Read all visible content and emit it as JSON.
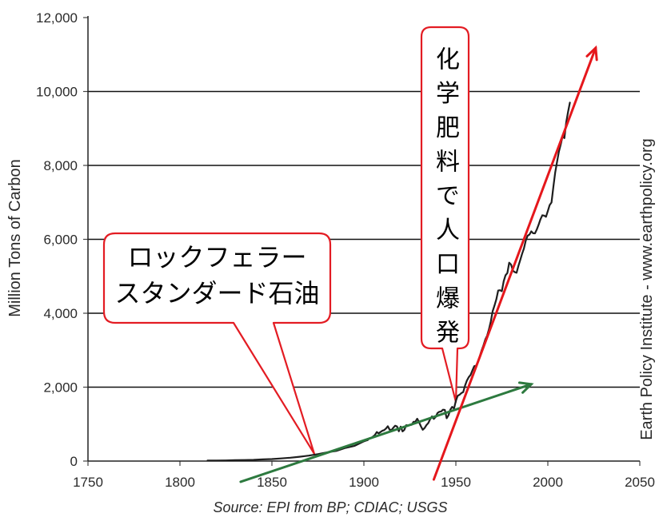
{
  "chart_data": {
    "type": "line",
    "xlabel": "",
    "ylabel": "Million Tons of Carbon",
    "xlim": [
      1750,
      2050
    ],
    "ylim": [
      0,
      12000
    ],
    "x_ticks": [
      1750,
      1800,
      1850,
      1900,
      1950,
      2000,
      2050
    ],
    "x_tick_labels": [
      "1750",
      "1800",
      "1850",
      "1900",
      "1950",
      "2000",
      "2050"
    ],
    "y_ticks": [
      0,
      2000,
      4000,
      6000,
      8000,
      10000,
      12000
    ],
    "y_tick_labels": [
      "0",
      "2,000",
      "4,000",
      "6,000",
      "8,000",
      "10,000",
      "12,000"
    ],
    "grid": "horizontal",
    "legend": "none",
    "series": [
      {
        "color": "#1e1e1e",
        "x": [
          1815,
          1820,
          1825,
          1830,
          1835,
          1840,
          1845,
          1850,
          1855,
          1860,
          1865,
          1870,
          1875,
          1880,
          1885,
          1890,
          1895,
          1900,
          1901,
          1902,
          1903,
          1904,
          1905,
          1906,
          1907,
          1908,
          1909,
          1910,
          1911,
          1912,
          1913,
          1914,
          1915,
          1916,
          1917,
          1918,
          1919,
          1920,
          1921,
          1922,
          1923,
          1924,
          1925,
          1926,
          1927,
          1928,
          1929,
          1930,
          1931,
          1932,
          1933,
          1934,
          1935,
          1936,
          1937,
          1938,
          1939,
          1940,
          1941,
          1942,
          1943,
          1944,
          1945,
          1946,
          1947,
          1948,
          1949,
          1950,
          1951,
          1952,
          1953,
          1954,
          1955,
          1956,
          1957,
          1958,
          1959,
          1960,
          1961,
          1962,
          1963,
          1964,
          1965,
          1966,
          1967,
          1968,
          1969,
          1970,
          1971,
          1972,
          1973,
          1974,
          1975,
          1976,
          1977,
          1978,
          1979,
          1980,
          1981,
          1982,
          1983,
          1984,
          1985,
          1986,
          1987,
          1988,
          1989,
          1990,
          1991,
          1992,
          1993,
          1994,
          1995,
          1996,
          1997,
          1998,
          1999,
          2000,
          2001,
          2002,
          2003,
          2004,
          2005,
          2006,
          2007,
          2008,
          2009,
          2010,
          2011,
          2012
        ],
        "y": [
          14,
          14,
          17,
          24,
          29,
          33,
          45,
          54,
          71,
          91,
          116,
          147,
          188,
          236,
          275,
          356,
          414,
          534,
          552,
          566,
          617,
          624,
          663,
          707,
          784,
          750,
          785,
          819,
          836,
          879,
          943,
          850,
          838,
          901,
          955,
          936,
          806,
          932,
          803,
          845,
          970,
          963,
          975,
          983,
          1062,
          1065,
          1145,
          1053,
          940,
          847,
          893,
          973,
          1027,
          1130,
          1209,
          1142,
          1192,
          1299,
          1334,
          1342,
          1391,
          1383,
          1160,
          1238,
          1392,
          1469,
          1419,
          1630,
          1767,
          1795,
          1841,
          1865,
          2043,
          2177,
          2270,
          2330,
          2454,
          2569,
          2580,
          2686,
          2833,
          2995,
          3130,
          3288,
          3393,
          3566,
          3780,
          4053,
          4208,
          4376,
          4614,
          4623,
          4596,
          4864,
          5026,
          5087,
          5369,
          5316,
          5152,
          5113,
          5094,
          5280,
          5439,
          5607,
          5752,
          5965,
          6097,
          6127,
          6217,
          6164,
          6162,
          6266,
          6398,
          6542,
          6651,
          6643,
          6610,
          6765,
          6927,
          6996,
          7416,
          7807,
          8093,
          8370,
          8566,
          8783,
          8740,
          9167,
          9449,
          9700
        ]
      }
    ],
    "annotations": [
      {
        "type": "callout",
        "lines": [
          "ロックフェラー",
          "スタンダード石油"
        ],
        "x": 1873,
        "y": 200,
        "border_color": "#e31c23"
      },
      {
        "type": "callout",
        "orientation": "vertical",
        "text": "化学肥料で人口爆発",
        "x": 1950,
        "y": 1600,
        "border_color": "#e31c23"
      },
      {
        "type": "arrow",
        "color": "#2d7a3f",
        "from": [
          1833,
          -560
        ],
        "to": [
          1991,
          2080
        ]
      },
      {
        "type": "arrow",
        "color": "#e5171c",
        "from": [
          1938,
          -500
        ],
        "to": [
          2026,
          11180
        ]
      }
    ]
  },
  "source": "Source: EPI from BP; CDIAC; USGS",
  "credit": "Earth Policy Institute - www.earthpolicy.org"
}
